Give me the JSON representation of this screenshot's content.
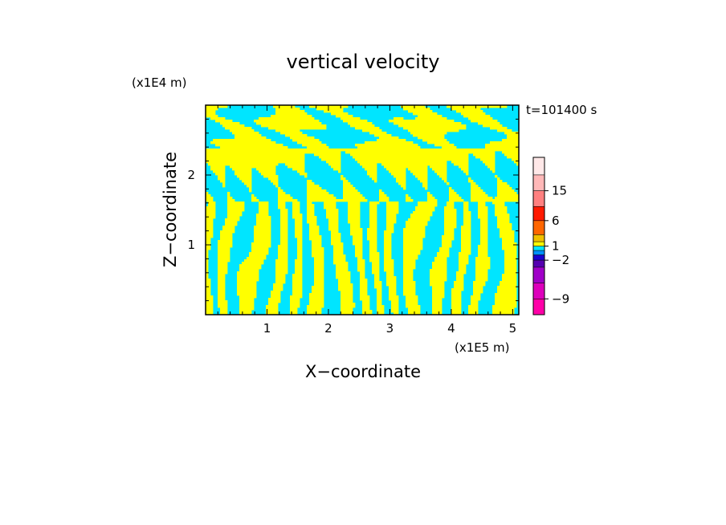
{
  "chart_data": {
    "type": "heatmap",
    "title": "vertical velocity",
    "xlabel": "X−coordinate",
    "ylabel": "Z−coordinate",
    "x_unit": "(x1E5 m)",
    "y_unit": "(x1E4 m)",
    "time_label": "t=101400 s",
    "xlim": [
      0,
      5.1
    ],
    "ylim": [
      0,
      3.0
    ],
    "x_ticks": [
      1,
      2,
      3,
      4,
      5
    ],
    "y_ticks": [
      1,
      2
    ],
    "x_tick_labels": [
      "1",
      "2",
      "3",
      "4",
      "5"
    ],
    "y_tick_labels": [
      "1",
      "2"
    ],
    "field_colors": {
      "positive": "#ffff00",
      "negative": "#00e5ff"
    },
    "colorbar": {
      "levels": [
        -12,
        -9,
        -6,
        -4,
        -2,
        -1,
        0,
        1,
        2,
        4,
        6,
        10,
        15,
        20
      ],
      "colors": [
        "#ff00a8",
        "#dd00bb",
        "#a000c8",
        "#5500b0",
        "#1a00d0",
        "#0090ff",
        "#00e5ff",
        "#ffff00",
        "#f0c000",
        "#ff6600",
        "#ff1a00",
        "#ff8080",
        "#ffb8b8",
        "#ffe8e8"
      ],
      "labels": [
        {
          "value": -9,
          "text": "−9"
        },
        {
          "value": -2,
          "text": "−2"
        },
        {
          "value": 1,
          "text": "1"
        },
        {
          "value": 6,
          "text": "6"
        },
        {
          "value": 15,
          "text": "15"
        }
      ]
    }
  }
}
